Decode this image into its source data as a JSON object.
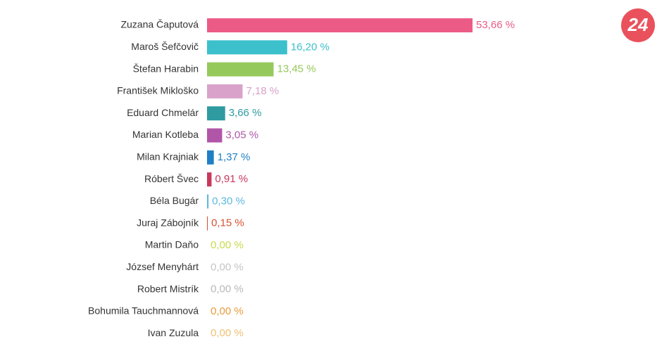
{
  "logo": "24",
  "chart_data": {
    "type": "bar",
    "orientation": "horizontal",
    "categories": [
      "Zuzana Čaputová",
      "Maroš Šefčovič",
      "Štefan Harabin",
      "František Mikloško",
      "Eduard Chmelár",
      "Marian Kotleba",
      "Milan Krajniak",
      "Róbert Švec",
      "Béla Bugár",
      "Juraj Zábojník",
      "Martin Daňo",
      "József Menyhárt",
      "Robert Mistrík",
      "Bohumila Tauchmannová",
      "Ivan Zuzula"
    ],
    "values": [
      53.66,
      16.2,
      13.45,
      7.18,
      3.66,
      3.05,
      1.37,
      0.91,
      0.3,
      0.15,
      0,
      0,
      0,
      0,
      0
    ],
    "value_labels": [
      "53,66 %",
      "16,20 %",
      "13,45 %",
      "7,18 %",
      "3,66 %",
      "3,05 %",
      "1,37 %",
      "0,91 %",
      "0,30 %",
      "0,15 %",
      "0,00 %",
      "0,00 %",
      "0,00 %",
      "0,00 %",
      "0,00 %"
    ],
    "colors": [
      "#ec5b86",
      "#3cc0cc",
      "#96c95b",
      "#d8a2ca",
      "#2e9ba1",
      "#b155a9",
      "#1f7fc5",
      "#c9385b",
      "#5db9e1",
      "#da5130",
      "#cad94b",
      "#c4c4c4",
      "#b8b8b8",
      "#e99b3b",
      "#f0c172"
    ]
  }
}
